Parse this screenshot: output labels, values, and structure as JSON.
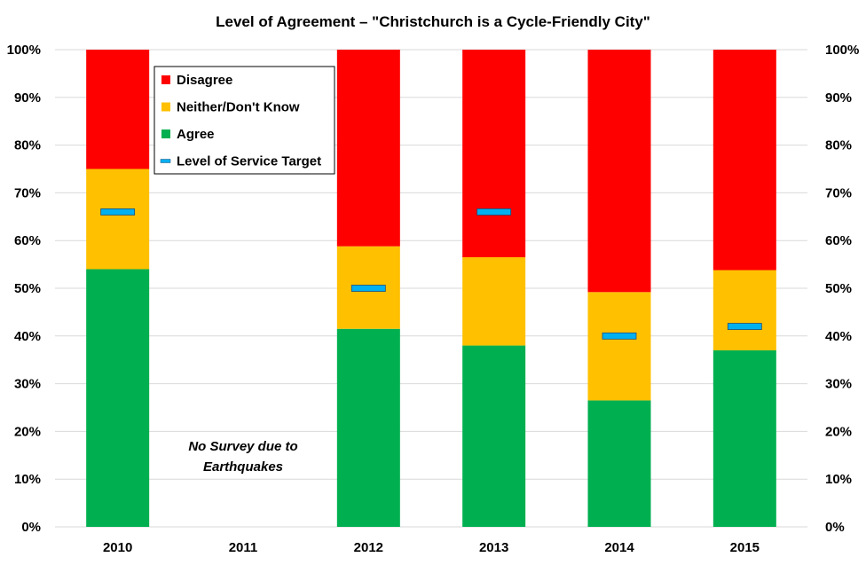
{
  "chart_data": {
    "type": "bar",
    "stacked": true,
    "title": "Level of Agreement – \"Christchurch  is a Cycle-Friendly City\"",
    "categories": [
      "2010",
      "2011",
      "2012",
      "2013",
      "2014",
      "2015"
    ],
    "series": [
      {
        "name": "Agree",
        "color": "#00b050",
        "values": [
          54,
          null,
          41.5,
          38,
          26.5,
          37
        ]
      },
      {
        "name": "Neither/Don't Know",
        "color": "#ffc000",
        "values": [
          21,
          null,
          17.3,
          18.5,
          22.7,
          16.8
        ]
      },
      {
        "name": "Disagree",
        "color": "#ff0000",
        "values": [
          25,
          null,
          41.2,
          43.5,
          50.8,
          46.2
        ]
      }
    ],
    "target": {
      "name": "Level of Service Target",
      "color": "#00b0f0",
      "values": [
        66,
        null,
        50,
        66,
        40,
        42
      ]
    },
    "ylim": [
      0,
      100
    ],
    "yticks": [
      "0%",
      "10%",
      "20%",
      "30%",
      "40%",
      "50%",
      "60%",
      "70%",
      "80%",
      "90%",
      "100%"
    ],
    "legend_order": [
      "Disagree",
      "Neither/Don't Know",
      "Agree",
      "Level of Service Target"
    ],
    "legend_position": "top-left",
    "grid": true,
    "annotation": {
      "category": "2011",
      "lines": [
        "No Survey due to",
        "Earthquakes"
      ]
    }
  }
}
